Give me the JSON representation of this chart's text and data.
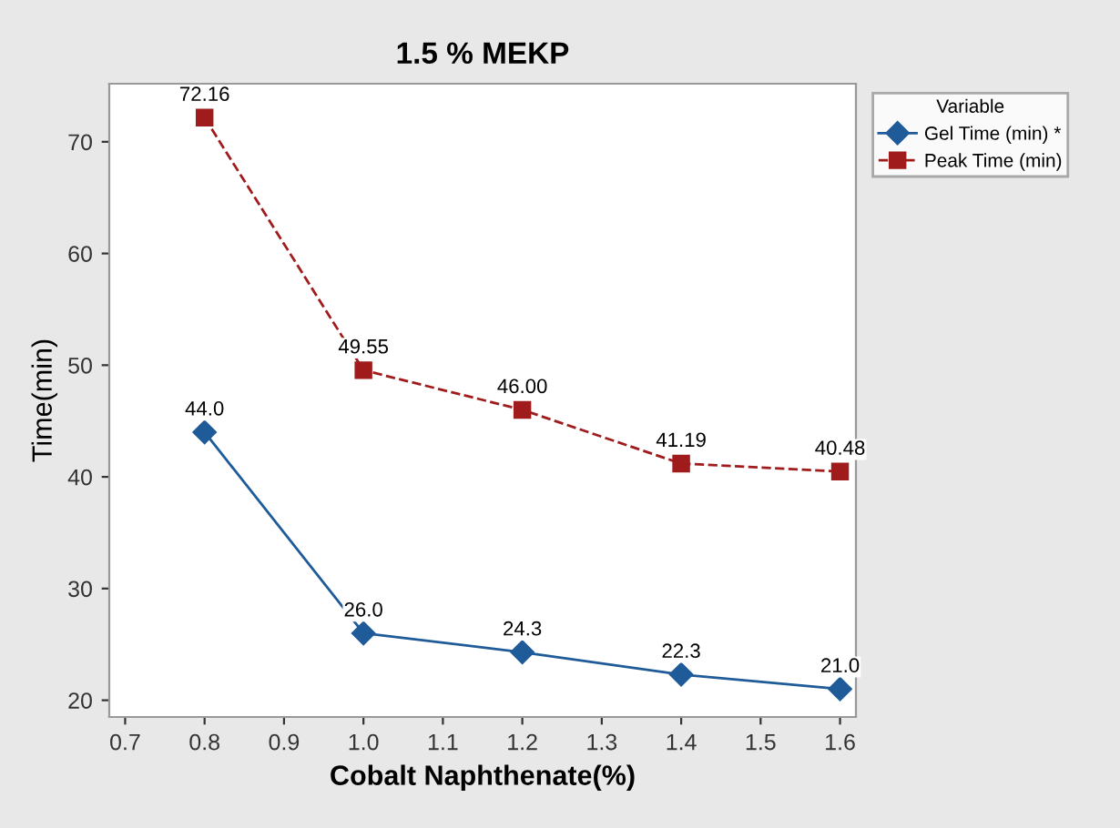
{
  "chart_data": {
    "type": "line",
    "title": "1.5 % MEKP",
    "xlabel": "Cobalt Naphthenate(%)",
    "ylabel": "Time(min)",
    "legend_title": "Variable",
    "x": [
      0.8,
      1.0,
      1.2,
      1.4,
      1.6
    ],
    "series": [
      {
        "name": "Gel Time (min) *",
        "color": "#1f5b99",
        "marker": "diamond",
        "line_style": "solid",
        "values": [
          44.0,
          26.0,
          24.3,
          22.3,
          21.0
        ],
        "value_labels": [
          "44.0",
          "26.0",
          "24.3",
          "22.3",
          "21.0"
        ]
      },
      {
        "name": "Peak Time (min)",
        "color": "#a01c1c",
        "marker": "square",
        "line_style": "dashed",
        "values": [
          72.16,
          49.55,
          46.0,
          41.19,
          40.48
        ],
        "value_labels": [
          "72.16",
          "49.55",
          "46.00",
          "41.19",
          "40.48"
        ]
      }
    ],
    "xlim": [
      0.68,
      1.62
    ],
    "ylim": [
      18.5,
      75.2
    ],
    "xticks": [
      {
        "value": 0.7,
        "label": "0.7"
      },
      {
        "value": 0.8,
        "label": "0.8"
      },
      {
        "value": 0.9,
        "label": "0.9"
      },
      {
        "value": 1.0,
        "label": "1.0"
      },
      {
        "value": 1.1,
        "label": "1.1"
      },
      {
        "value": 1.2,
        "label": "1.2"
      },
      {
        "value": 1.3,
        "label": "1.3"
      },
      {
        "value": 1.4,
        "label": "1.4"
      },
      {
        "value": 1.5,
        "label": "1.5"
      },
      {
        "value": 1.6,
        "label": "1.6"
      }
    ],
    "yticks": [
      20,
      30,
      40,
      50,
      60,
      70
    ],
    "grid": false,
    "legend": "top right"
  }
}
